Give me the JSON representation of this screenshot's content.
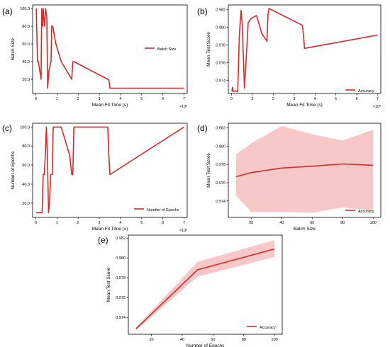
{
  "chart_data": [
    {
      "panel": "(a)",
      "type": "line",
      "xlabel": "Mean Fit Time (s)",
      "ylabel": "Batch Size",
      "x_multiplier": "×10³",
      "xlim": [
        -0.15,
        7.15
      ],
      "ylim": [
        4,
        104
      ],
      "xticks": [
        0,
        1,
        2,
        3,
        4,
        5,
        6,
        7
      ],
      "xtick_labels": [
        "0",
        "1",
        "2",
        "3",
        "4",
        "5",
        "6",
        "7"
      ],
      "yticks": [
        20,
        40,
        60,
        80,
        100
      ],
      "ytick_labels": [
        "20.0",
        "40.0",
        "60.0",
        "80.0",
        "100.0"
      ],
      "legend": "right",
      "series": [
        {
          "name": "Batch Size",
          "color": "#d42a2a",
          "x": [
            0.02,
            0.05,
            0.08,
            0.12,
            0.25,
            0.28,
            0.32,
            0.35,
            0.38,
            0.42,
            0.46,
            0.52,
            0.56,
            0.62,
            0.72,
            0.75,
            0.8,
            0.95,
            1.2,
            1.45,
            1.7,
            1.75,
            1.8,
            3.4,
            3.45,
            3.5,
            7.0
          ],
          "y": [
            100,
            70,
            40,
            40,
            20,
            100,
            80,
            100,
            90,
            80,
            100,
            90,
            10,
            30,
            40,
            80,
            80,
            60,
            40,
            30,
            20,
            40,
            40,
            20,
            20,
            10,
            10
          ]
        }
      ]
    },
    {
      "panel": "(b)",
      "type": "line",
      "xlabel": "Mean Fit Time (s)",
      "ylabel": "Mean Test Score",
      "x_multiplier": "×10³",
      "xlim": [
        -0.15,
        7.15
      ],
      "ylim": [
        0.9725,
        0.9825
      ],
      "xticks": [
        0,
        1,
        2,
        3,
        4,
        5,
        6,
        7
      ],
      "xtick_labels": [
        "0",
        "1",
        "2",
        "3",
        "4",
        "5",
        "6",
        "7"
      ],
      "yticks": [
        0.974,
        0.976,
        0.978,
        0.98,
        0.982
      ],
      "ytick_labels": [
        "0.974",
        "0.976",
        "0.978",
        "0.980",
        "0.982"
      ],
      "legend": "bottom-right",
      "series": [
        {
          "name": "Accuracy",
          "color": "#d42a2a",
          "x": [
            0.02,
            0.05,
            0.08,
            0.2,
            0.3,
            0.38,
            0.46,
            0.52,
            0.62,
            0.7,
            0.72,
            0.8,
            0.95,
            1.2,
            1.45,
            1.7,
            1.75,
            1.8,
            3.4,
            3.45,
            3.5,
            7.0
          ],
          "y": [
            0.9728,
            0.9732,
            0.9727,
            0.9728,
            0.9727,
            0.9792,
            0.9819,
            0.9802,
            0.9731,
            0.9762,
            0.977,
            0.9805,
            0.981,
            0.9813,
            0.9793,
            0.9784,
            0.9815,
            0.9821,
            0.9802,
            0.979,
            0.9776,
            0.9791
          ]
        }
      ]
    },
    {
      "panel": "(c)",
      "type": "line",
      "xlabel": "Mean Fit Time (s)",
      "ylabel": "Number of Epochs",
      "x_multiplier": "×10³",
      "xlim": [
        -0.15,
        7.15
      ],
      "ylim": [
        5,
        104
      ],
      "xticks": [
        0,
        1,
        2,
        3,
        4,
        5,
        6,
        7
      ],
      "xtick_labels": [
        "0",
        "1",
        "2",
        "3",
        "4",
        "5",
        "6",
        "7"
      ],
      "yticks": [
        20,
        40,
        60,
        80,
        100
      ],
      "ytick_labels": [
        "20.0",
        "40.0",
        "60.0",
        "80.0",
        "100.0"
      ],
      "legend": "bottom-right",
      "series": [
        {
          "name": "Number of Epochs",
          "color": "#d42a2a",
          "x": [
            0.02,
            0.3,
            0.35,
            0.4,
            0.45,
            0.5,
            0.55,
            0.6,
            0.65,
            0.7,
            0.78,
            0.82,
            0.95,
            1.0,
            1.2,
            1.6,
            1.7,
            1.75,
            1.8,
            3.4,
            3.45,
            3.5,
            7.0
          ],
          "y": [
            10,
            10,
            50,
            50,
            70,
            100,
            70,
            10,
            20,
            50,
            50,
            100,
            100,
            100,
            100,
            70,
            50,
            50,
            100,
            100,
            70,
            50,
            100
          ]
        }
      ]
    },
    {
      "panel": "(d)",
      "type": "line",
      "xlabel": "Batch Size",
      "ylabel": "Mean Test Score",
      "xlim": [
        5,
        105
      ],
      "ylim": [
        0.9722,
        0.9825
      ],
      "xticks": [
        20,
        40,
        60,
        80,
        100
      ],
      "xtick_labels": [
        "20",
        "40",
        "60",
        "80",
        "100"
      ],
      "yticks": [
        0.974,
        0.976,
        0.978,
        0.98,
        0.982
      ],
      "ytick_labels": [
        "0.974",
        "0.976",
        "0.978",
        "0.980",
        "0.982"
      ],
      "legend": "bottom-right",
      "series": [
        {
          "name": "Accuracy",
          "color": "#d42a2a",
          "band_color": "#f4b6b6",
          "x": [
            10,
            20,
            40,
            60,
            80,
            100
          ],
          "y": [
            0.97665,
            0.9771,
            0.9776,
            0.9778,
            0.97805,
            0.9779
          ],
          "lower": [
            0.9746,
            0.9728,
            0.9728,
            0.9727,
            0.9733,
            0.9729
          ],
          "upper": [
            0.9791,
            0.9803,
            0.9822,
            0.9813,
            0.9806,
            0.9818
          ]
        }
      ]
    },
    {
      "panel": "(e)",
      "type": "line",
      "xlabel": "Number of Epochs",
      "ylabel": "Mean Test Score",
      "xlim": [
        5,
        105
      ],
      "ylim": [
        0.9723,
        0.9823
      ],
      "xticks": [
        20,
        40,
        60,
        80,
        100
      ],
      "xtick_labels": [
        "20",
        "40",
        "60",
        "80",
        "100"
      ],
      "yticks": [
        0.974,
        0.976,
        0.978,
        0.98,
        0.982
      ],
      "ytick_labels": [
        "0.974",
        "0.976",
        "0.978",
        "0.980",
        "0.982"
      ],
      "legend": "bottom-right",
      "series": [
        {
          "name": "Accuracy",
          "color": "#d42a2a",
          "band_color": "#f4b6b6",
          "x": [
            10,
            50,
            100
          ],
          "y": [
            0.97285,
            0.9788,
            0.9809
          ],
          "lower": [
            0.9727,
            0.9781,
            0.9801
          ],
          "upper": [
            0.973,
            0.9796,
            0.9818
          ]
        }
      ]
    }
  ]
}
